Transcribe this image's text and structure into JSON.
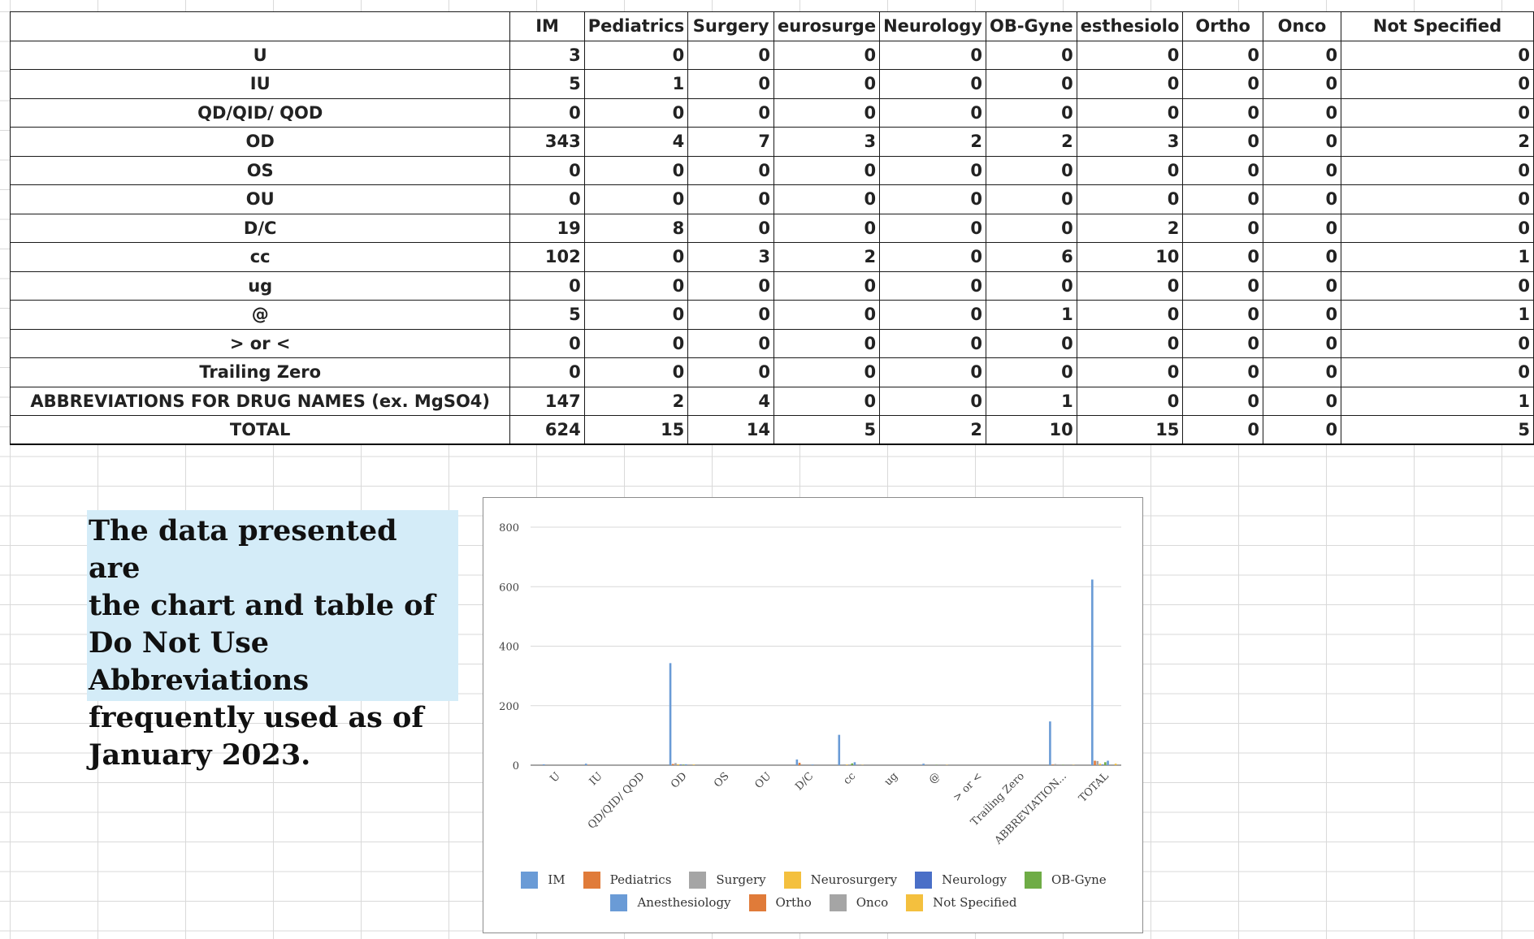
{
  "table": {
    "headers": [
      "",
      "IM",
      "Pediatrics",
      "Surgery",
      "eurosurge",
      "Neurology",
      "OB-Gyne",
      "esthesiolo",
      "Ortho",
      "Onco",
      "Not Specified"
    ],
    "rows": [
      {
        "label": "U",
        "values": [
          3,
          0,
          0,
          0,
          0,
          0,
          0,
          0,
          0,
          0
        ]
      },
      {
        "label": "IU",
        "values": [
          5,
          1,
          0,
          0,
          0,
          0,
          0,
          0,
          0,
          0
        ]
      },
      {
        "label": "QD/QID/ QOD",
        "values": [
          0,
          0,
          0,
          0,
          0,
          0,
          0,
          0,
          0,
          0
        ]
      },
      {
        "label": "OD",
        "values": [
          343,
          4,
          7,
          3,
          2,
          2,
          3,
          0,
          0,
          2
        ]
      },
      {
        "label": "OS",
        "values": [
          0,
          0,
          0,
          0,
          0,
          0,
          0,
          0,
          0,
          0
        ]
      },
      {
        "label": "OU",
        "values": [
          0,
          0,
          0,
          0,
          0,
          0,
          0,
          0,
          0,
          0
        ]
      },
      {
        "label": "D/C",
        "values": [
          19,
          8,
          0,
          0,
          0,
          0,
          2,
          0,
          0,
          0
        ]
      },
      {
        "label": "cc",
        "values": [
          102,
          0,
          3,
          2,
          0,
          6,
          10,
          0,
          0,
          1
        ]
      },
      {
        "label": "ug",
        "values": [
          0,
          0,
          0,
          0,
          0,
          0,
          0,
          0,
          0,
          0
        ]
      },
      {
        "label": "@",
        "values": [
          5,
          0,
          0,
          0,
          0,
          1,
          0,
          0,
          0,
          1
        ]
      },
      {
        "label": "> or <",
        "values": [
          0,
          0,
          0,
          0,
          0,
          0,
          0,
          0,
          0,
          0
        ]
      },
      {
        "label": "Trailing Zero",
        "values": [
          0,
          0,
          0,
          0,
          0,
          0,
          0,
          0,
          0,
          0
        ]
      },
      {
        "label": "ABBREVIATIONS FOR DRUG NAMES (ex. MgSO4)",
        "values": [
          147,
          2,
          4,
          0,
          0,
          1,
          0,
          0,
          0,
          1
        ]
      },
      {
        "label": "TOTAL",
        "values": [
          624,
          15,
          14,
          5,
          2,
          10,
          15,
          0,
          0,
          5
        ]
      }
    ]
  },
  "note": {
    "lines": [
      "The data presented are",
      "the chart and table of",
      "Do Not Use Abbreviations",
      "frequently used as of",
      "January 2023."
    ]
  },
  "chart_data": {
    "type": "bar",
    "categories": [
      "U",
      "IU",
      "QD/QID/ QOD",
      "OD",
      "OS",
      "OU",
      "D/C",
      "cc",
      "ug",
      "@",
      "> or <",
      "Trailing Zero",
      "ABBREVIATION...",
      "TOTAL"
    ],
    "series": [
      {
        "name": "IM",
        "color": "#6a9bd6",
        "values": [
          3,
          5,
          0,
          343,
          0,
          0,
          19,
          102,
          0,
          5,
          0,
          0,
          147,
          624
        ]
      },
      {
        "name": "Pediatrics",
        "color": "#e07b39",
        "values": [
          0,
          1,
          0,
          4,
          0,
          0,
          8,
          0,
          0,
          0,
          0,
          0,
          2,
          15
        ]
      },
      {
        "name": "Surgery",
        "color": "#a5a5a5",
        "values": [
          0,
          0,
          0,
          7,
          0,
          0,
          0,
          3,
          0,
          0,
          0,
          0,
          4,
          14
        ]
      },
      {
        "name": "Neurosurgery",
        "color": "#f4c03e",
        "values": [
          0,
          0,
          0,
          3,
          0,
          0,
          0,
          2,
          0,
          0,
          0,
          0,
          0,
          5
        ]
      },
      {
        "name": "Neurology",
        "color": "#4a6fc7",
        "values": [
          0,
          0,
          0,
          2,
          0,
          0,
          0,
          0,
          0,
          0,
          0,
          0,
          0,
          2
        ]
      },
      {
        "name": "OB-Gyne",
        "color": "#6fac46",
        "values": [
          0,
          0,
          0,
          2,
          0,
          0,
          0,
          6,
          0,
          1,
          0,
          0,
          1,
          10
        ]
      },
      {
        "name": "Anesthesiology",
        "color": "#6a9bd6",
        "values": [
          0,
          0,
          0,
          3,
          0,
          0,
          2,
          10,
          0,
          0,
          0,
          0,
          0,
          15
        ]
      },
      {
        "name": "Ortho",
        "color": "#e07b39",
        "values": [
          0,
          0,
          0,
          0,
          0,
          0,
          0,
          0,
          0,
          0,
          0,
          0,
          0,
          0
        ]
      },
      {
        "name": "Onco",
        "color": "#a5a5a5",
        "values": [
          0,
          0,
          0,
          0,
          0,
          0,
          0,
          0,
          0,
          0,
          0,
          0,
          0,
          0
        ]
      },
      {
        "name": "Not Specified",
        "color": "#f4c03e",
        "values": [
          0,
          0,
          0,
          2,
          0,
          0,
          0,
          1,
          0,
          1,
          0,
          0,
          1,
          5
        ]
      }
    ],
    "ylim": [
      0,
      800
    ],
    "yticks": [
      "0",
      "200",
      "400",
      "600",
      "800"
    ],
    "grid": true,
    "legend_position": "bottom"
  }
}
